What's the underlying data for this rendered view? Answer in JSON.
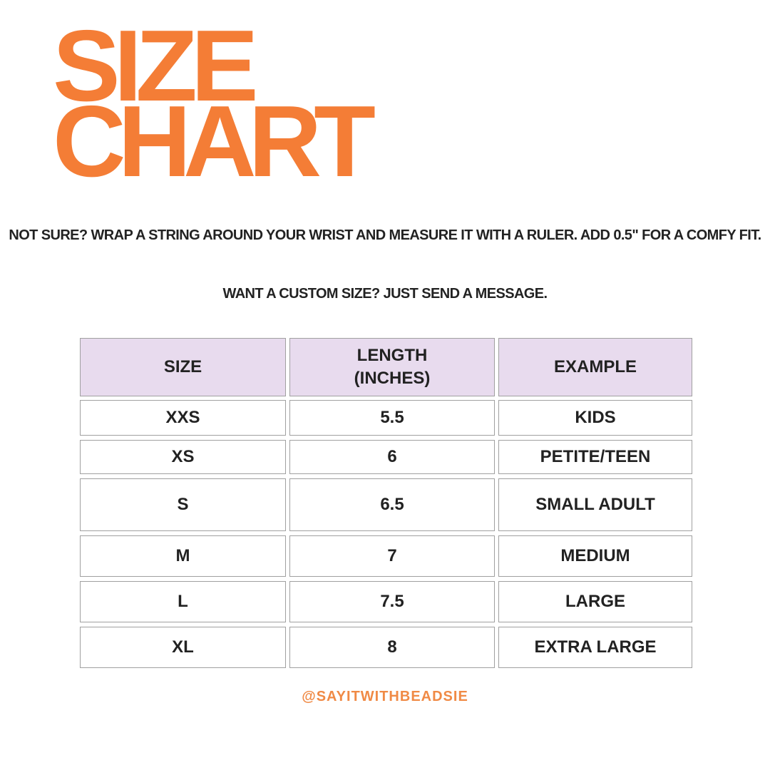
{
  "header": {
    "title_lines": [
      "SIZE",
      "CHART"
    ]
  },
  "instructions": [
    "NOT SURE?  WRAP A STRING AROUND YOUR WRIST AND MEASURE IT WITH A RULER. ADD 0.5\" FOR A COMFY FIT.",
    "WANT A CUSTOM SIZE? JUST SEND A MESSAGE."
  ],
  "table": {
    "columns": [
      "SIZE",
      "LENGTH (INCHES)",
      "EXAMPLE"
    ],
    "rows": [
      [
        "XXS",
        "5.5",
        "KIDS"
      ],
      [
        "XS",
        "6",
        "PETITE/TEEN"
      ],
      [
        "S",
        "6.5",
        "SMALL ADULT"
      ],
      [
        "M",
        "7",
        "MEDIUM"
      ],
      [
        "L",
        "7.5",
        "LARGE"
      ],
      [
        "XL",
        "8",
        "EXTRA LARGE"
      ]
    ]
  },
  "footer": {
    "handle": "@SAYITWITHBEADSIE"
  }
}
